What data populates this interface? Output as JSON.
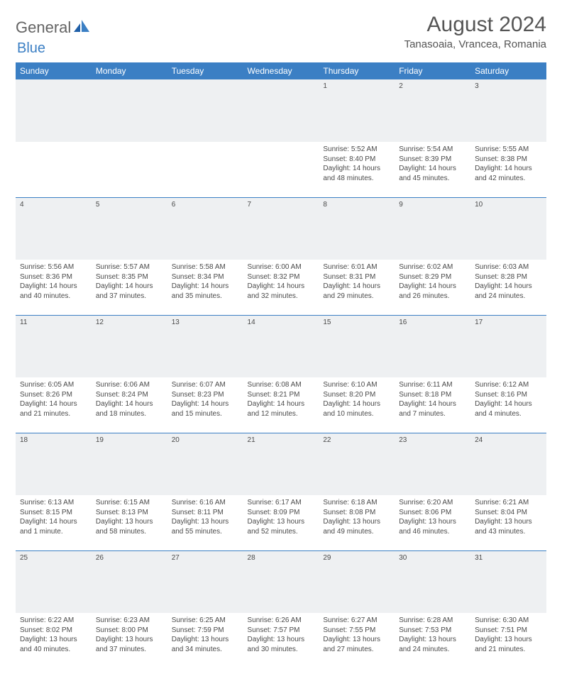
{
  "brand": {
    "part1": "General",
    "part2": "Blue"
  },
  "title": "August 2024",
  "location": "Tanasoaia, Vrancea, Romania",
  "header_bg": "#3b7fc4",
  "daynum_bg": "#eef0f2",
  "days": [
    "Sunday",
    "Monday",
    "Tuesday",
    "Wednesday",
    "Thursday",
    "Friday",
    "Saturday"
  ],
  "weeks": [
    [
      {
        "n": "",
        "sr": "",
        "ss": "",
        "dl": ""
      },
      {
        "n": "",
        "sr": "",
        "ss": "",
        "dl": ""
      },
      {
        "n": "",
        "sr": "",
        "ss": "",
        "dl": ""
      },
      {
        "n": "",
        "sr": "",
        "ss": "",
        "dl": ""
      },
      {
        "n": "1",
        "sr": "Sunrise: 5:52 AM",
        "ss": "Sunset: 8:40 PM",
        "dl": "Daylight: 14 hours and 48 minutes."
      },
      {
        "n": "2",
        "sr": "Sunrise: 5:54 AM",
        "ss": "Sunset: 8:39 PM",
        "dl": "Daylight: 14 hours and 45 minutes."
      },
      {
        "n": "3",
        "sr": "Sunrise: 5:55 AM",
        "ss": "Sunset: 8:38 PM",
        "dl": "Daylight: 14 hours and 42 minutes."
      }
    ],
    [
      {
        "n": "4",
        "sr": "Sunrise: 5:56 AM",
        "ss": "Sunset: 8:36 PM",
        "dl": "Daylight: 14 hours and 40 minutes."
      },
      {
        "n": "5",
        "sr": "Sunrise: 5:57 AM",
        "ss": "Sunset: 8:35 PM",
        "dl": "Daylight: 14 hours and 37 minutes."
      },
      {
        "n": "6",
        "sr": "Sunrise: 5:58 AM",
        "ss": "Sunset: 8:34 PM",
        "dl": "Daylight: 14 hours and 35 minutes."
      },
      {
        "n": "7",
        "sr": "Sunrise: 6:00 AM",
        "ss": "Sunset: 8:32 PM",
        "dl": "Daylight: 14 hours and 32 minutes."
      },
      {
        "n": "8",
        "sr": "Sunrise: 6:01 AM",
        "ss": "Sunset: 8:31 PM",
        "dl": "Daylight: 14 hours and 29 minutes."
      },
      {
        "n": "9",
        "sr": "Sunrise: 6:02 AM",
        "ss": "Sunset: 8:29 PM",
        "dl": "Daylight: 14 hours and 26 minutes."
      },
      {
        "n": "10",
        "sr": "Sunrise: 6:03 AM",
        "ss": "Sunset: 8:28 PM",
        "dl": "Daylight: 14 hours and 24 minutes."
      }
    ],
    [
      {
        "n": "11",
        "sr": "Sunrise: 6:05 AM",
        "ss": "Sunset: 8:26 PM",
        "dl": "Daylight: 14 hours and 21 minutes."
      },
      {
        "n": "12",
        "sr": "Sunrise: 6:06 AM",
        "ss": "Sunset: 8:24 PM",
        "dl": "Daylight: 14 hours and 18 minutes."
      },
      {
        "n": "13",
        "sr": "Sunrise: 6:07 AM",
        "ss": "Sunset: 8:23 PM",
        "dl": "Daylight: 14 hours and 15 minutes."
      },
      {
        "n": "14",
        "sr": "Sunrise: 6:08 AM",
        "ss": "Sunset: 8:21 PM",
        "dl": "Daylight: 14 hours and 12 minutes."
      },
      {
        "n": "15",
        "sr": "Sunrise: 6:10 AM",
        "ss": "Sunset: 8:20 PM",
        "dl": "Daylight: 14 hours and 10 minutes."
      },
      {
        "n": "16",
        "sr": "Sunrise: 6:11 AM",
        "ss": "Sunset: 8:18 PM",
        "dl": "Daylight: 14 hours and 7 minutes."
      },
      {
        "n": "17",
        "sr": "Sunrise: 6:12 AM",
        "ss": "Sunset: 8:16 PM",
        "dl": "Daylight: 14 hours and 4 minutes."
      }
    ],
    [
      {
        "n": "18",
        "sr": "Sunrise: 6:13 AM",
        "ss": "Sunset: 8:15 PM",
        "dl": "Daylight: 14 hours and 1 minute."
      },
      {
        "n": "19",
        "sr": "Sunrise: 6:15 AM",
        "ss": "Sunset: 8:13 PM",
        "dl": "Daylight: 13 hours and 58 minutes."
      },
      {
        "n": "20",
        "sr": "Sunrise: 6:16 AM",
        "ss": "Sunset: 8:11 PM",
        "dl": "Daylight: 13 hours and 55 minutes."
      },
      {
        "n": "21",
        "sr": "Sunrise: 6:17 AM",
        "ss": "Sunset: 8:09 PM",
        "dl": "Daylight: 13 hours and 52 minutes."
      },
      {
        "n": "22",
        "sr": "Sunrise: 6:18 AM",
        "ss": "Sunset: 8:08 PM",
        "dl": "Daylight: 13 hours and 49 minutes."
      },
      {
        "n": "23",
        "sr": "Sunrise: 6:20 AM",
        "ss": "Sunset: 8:06 PM",
        "dl": "Daylight: 13 hours and 46 minutes."
      },
      {
        "n": "24",
        "sr": "Sunrise: 6:21 AM",
        "ss": "Sunset: 8:04 PM",
        "dl": "Daylight: 13 hours and 43 minutes."
      }
    ],
    [
      {
        "n": "25",
        "sr": "Sunrise: 6:22 AM",
        "ss": "Sunset: 8:02 PM",
        "dl": "Daylight: 13 hours and 40 minutes."
      },
      {
        "n": "26",
        "sr": "Sunrise: 6:23 AM",
        "ss": "Sunset: 8:00 PM",
        "dl": "Daylight: 13 hours and 37 minutes."
      },
      {
        "n": "27",
        "sr": "Sunrise: 6:25 AM",
        "ss": "Sunset: 7:59 PM",
        "dl": "Daylight: 13 hours and 34 minutes."
      },
      {
        "n": "28",
        "sr": "Sunrise: 6:26 AM",
        "ss": "Sunset: 7:57 PM",
        "dl": "Daylight: 13 hours and 30 minutes."
      },
      {
        "n": "29",
        "sr": "Sunrise: 6:27 AM",
        "ss": "Sunset: 7:55 PM",
        "dl": "Daylight: 13 hours and 27 minutes."
      },
      {
        "n": "30",
        "sr": "Sunrise: 6:28 AM",
        "ss": "Sunset: 7:53 PM",
        "dl": "Daylight: 13 hours and 24 minutes."
      },
      {
        "n": "31",
        "sr": "Sunrise: 6:30 AM",
        "ss": "Sunset: 7:51 PM",
        "dl": "Daylight: 13 hours and 21 minutes."
      }
    ]
  ]
}
